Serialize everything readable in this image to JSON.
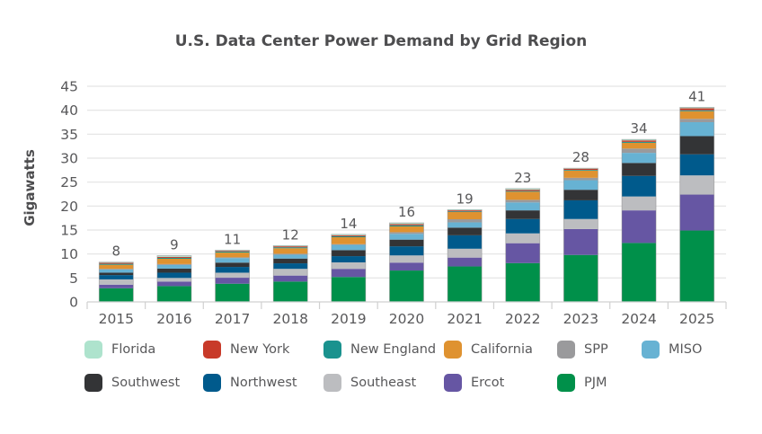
{
  "chart_data": {
    "type": "bar",
    "stacked": true,
    "title": "U.S. Data Center Power Demand by Grid Region",
    "xlabel": "",
    "ylabel": "Gigawatts",
    "ylim": [
      0,
      45
    ],
    "yticks": [
      0,
      5,
      10,
      15,
      20,
      25,
      30,
      35,
      40,
      45
    ],
    "grid": true,
    "legend_position": "bottom",
    "categories": [
      "2015",
      "2016",
      "2017",
      "2018",
      "2019",
      "2020",
      "2021",
      "2022",
      "2023",
      "2024",
      "2025"
    ],
    "totals_labels": [
      "8",
      "9",
      "11",
      "12",
      "14",
      "16",
      "19",
      "23",
      "28",
      "34",
      "41"
    ],
    "series": [
      {
        "name": "PJM",
        "color": "#00904a",
        "values": [
          2.85,
          3.3,
          3.8,
          4.25,
          5.2,
          6.55,
          7.4,
          8.1,
          9.8,
          12.3,
          14.9
        ]
      },
      {
        "name": "Ercot",
        "color": "#6656a3",
        "values": [
          0.75,
          0.95,
          1.25,
          1.25,
          1.7,
          1.65,
          1.85,
          4.15,
          5.4,
          6.8,
          7.5
        ]
      },
      {
        "name": "Southeast",
        "color": "#bcbdc0",
        "values": [
          1.1,
          0.75,
          1.05,
          1.4,
          1.35,
          1.5,
          1.85,
          2.05,
          2.1,
          2.9,
          4.0
        ]
      },
      {
        "name": "Northwest",
        "color": "#005a8c",
        "values": [
          0.9,
          1.1,
          1.2,
          1.15,
          1.3,
          1.9,
          2.8,
          3.0,
          3.9,
          4.3,
          4.4
        ]
      },
      {
        "name": "Southwest",
        "color": "#333436",
        "values": [
          0.5,
          0.85,
          0.9,
          1.0,
          1.25,
          1.4,
          1.6,
          1.8,
          2.2,
          2.7,
          3.8
        ]
      },
      {
        "name": "MISO",
        "color": "#67b2d3",
        "values": [
          0.65,
          0.75,
          0.95,
          0.8,
          1.1,
          1.2,
          1.1,
          1.65,
          2.0,
          2.1,
          2.9
        ]
      },
      {
        "name": "SPP",
        "color": "#9a9a9c",
        "values": [
          0.15,
          0.2,
          0.15,
          0.2,
          0.15,
          0.35,
          0.65,
          0.55,
          0.5,
          0.9,
          0.7
        ]
      },
      {
        "name": "California",
        "color": "#df9230",
        "values": [
          0.85,
          1.1,
          1.0,
          1.15,
          1.45,
          1.2,
          1.5,
          1.7,
          1.5,
          1.2,
          1.6
        ]
      },
      {
        "name": "New England",
        "color": "#1a928e",
        "values": [
          0.2,
          0.2,
          0.2,
          0.2,
          0.2,
          0.25,
          0.15,
          0.15,
          0.15,
          0.2,
          0.2
        ]
      },
      {
        "name": "New York",
        "color": "#c83a29",
        "values": [
          0.2,
          0.2,
          0.15,
          0.2,
          0.2,
          0.25,
          0.2,
          0.25,
          0.25,
          0.3,
          0.4
        ]
      },
      {
        "name": "Florida",
        "color": "#aee3cd",
        "values": [
          0.15,
          0.25,
          0.15,
          0.15,
          0.2,
          0.25,
          0.15,
          0.25,
          0.1,
          0.2,
          0.2
        ]
      }
    ],
    "legend": [
      {
        "name": "Florida",
        "color": "#aee3cd"
      },
      {
        "name": "New York",
        "color": "#c83a29"
      },
      {
        "name": "New England",
        "color": "#1a928e"
      },
      {
        "name": "California",
        "color": "#df9230"
      },
      {
        "name": "SPP",
        "color": "#9a9a9c"
      },
      {
        "name": "MISO",
        "color": "#67b2d3"
      },
      {
        "name": "Southwest",
        "color": "#333436"
      },
      {
        "name": "Northwest",
        "color": "#005a8c"
      },
      {
        "name": "Southeast",
        "color": "#bcbdc0"
      },
      {
        "name": "Ercot",
        "color": "#6656a3"
      },
      {
        "name": "PJM",
        "color": "#00904a"
      }
    ]
  }
}
